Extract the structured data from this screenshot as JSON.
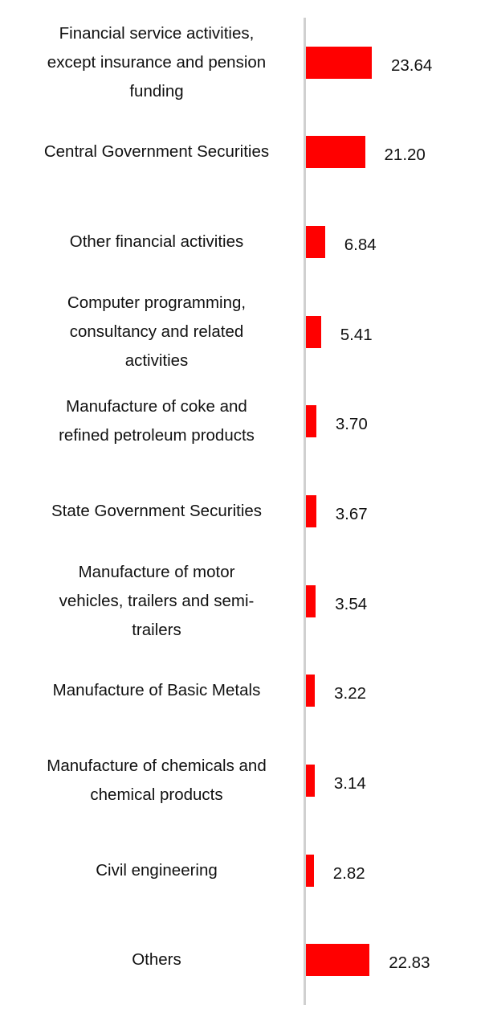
{
  "chart_data": {
    "type": "bar",
    "orientation": "horizontal",
    "title": "",
    "xlabel": "",
    "ylabel": "",
    "grid": false,
    "categories": [
      "Financial service activities,\nexcept insurance and pension\nfunding",
      "Central Government Securities",
      "Other financial activities",
      "Computer programming,\nconsultancy and related\nactivities",
      "Manufacture of coke and\nrefined petroleum products",
      "State Government Securities",
      "Manufacture of motor\nvehicles, trailers and semi-\ntrailers",
      "Manufacture of Basic Metals",
      "Manufacture of chemicals and\nchemical products",
      "Civil engineering",
      "Others"
    ],
    "values": [
      23.64,
      21.2,
      6.84,
      5.41,
      3.7,
      3.67,
      3.54,
      3.22,
      3.14,
      2.82,
      22.83
    ],
    "value_labels": [
      "23.64",
      "21.20",
      "6.84",
      "5.41",
      "3.70",
      "3.67",
      "3.54",
      "3.22",
      "3.14",
      "2.82",
      "22.83"
    ],
    "bar_color": "#ff0000",
    "axis_color": "#d0d0d0"
  }
}
